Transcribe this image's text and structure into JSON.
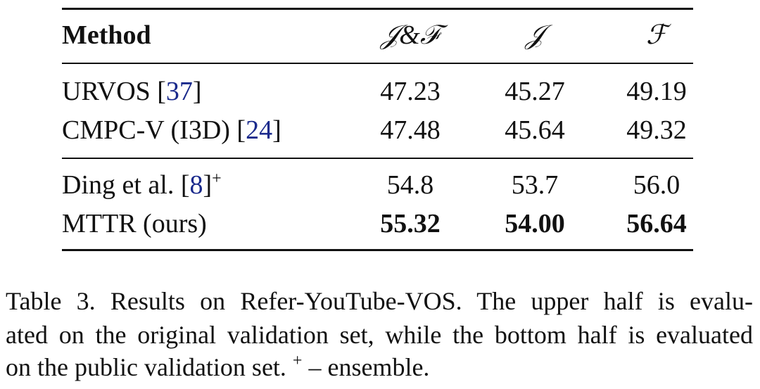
{
  "table": {
    "header": [
      "Method",
      "𝒥&ℱ",
      "𝒥",
      "ℱ"
    ],
    "groups": [
      [
        {
          "method": [
            {
              "text": "URVOS ["
            },
            {
              "text": "37",
              "link": true
            },
            {
              "text": "]"
            }
          ],
          "values": [
            "47.23",
            "45.27",
            "49.19"
          ]
        },
        {
          "method": [
            {
              "text": "CMPC-V (I3D) ["
            },
            {
              "text": "24",
              "link": true
            },
            {
              "text": "]"
            }
          ],
          "values": [
            "47.48",
            "45.64",
            "49.32"
          ]
        }
      ],
      [
        {
          "method": [
            {
              "text": "Ding et al. ["
            },
            {
              "text": "8",
              "link": true
            },
            {
              "text": "]"
            },
            {
              "text": "+",
              "sup": true
            }
          ],
          "values": [
            "54.8",
            "53.7",
            "56.0"
          ]
        },
        {
          "method": [
            {
              "text": "MTTR (ours)"
            }
          ],
          "values": [
            "55.32",
            "54.00",
            "56.64"
          ],
          "bold": true
        }
      ]
    ]
  },
  "caption": [
    [
      {
        "text": "Table 3. Results on Refer-YouTube-VOS. The upper half is evalu-"
      }
    ],
    [
      {
        "text": "ated on the original validation set, while the bottom half is evaluated"
      }
    ],
    [
      {
        "text": "on the public validation set. "
      },
      {
        "text": "+",
        "sup": true
      },
      {
        "text": " – ensemble."
      }
    ]
  ]
}
